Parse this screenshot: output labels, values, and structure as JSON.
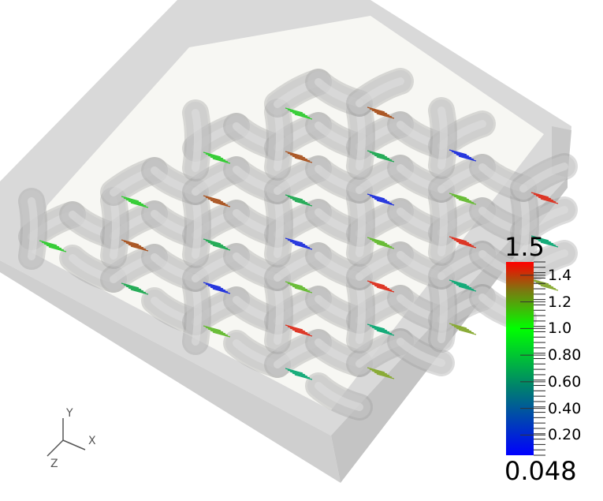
{
  "scene": {
    "description_free": true,
    "tube_color": "#b8b8b8",
    "box_color": "#d6d6d6",
    "floor_color": "#f7f7f3"
  },
  "colorbar": {
    "max_label": "1.5",
    "min_label": "0.048",
    "range": [
      0.048,
      1.5
    ],
    "ticks": [
      "1.4",
      "1.2",
      "1.0",
      "0.80",
      "0.60",
      "0.40",
      "0.20"
    ],
    "tick_values": [
      1.4,
      1.2,
      1.0,
      0.8,
      0.6,
      0.4,
      0.2
    ],
    "colors": {
      "low": "#0000ff",
      "mid": "#00ff00",
      "high": "#ff0000"
    }
  },
  "axes": {
    "x": "X",
    "y": "Y",
    "z": "Z"
  }
}
